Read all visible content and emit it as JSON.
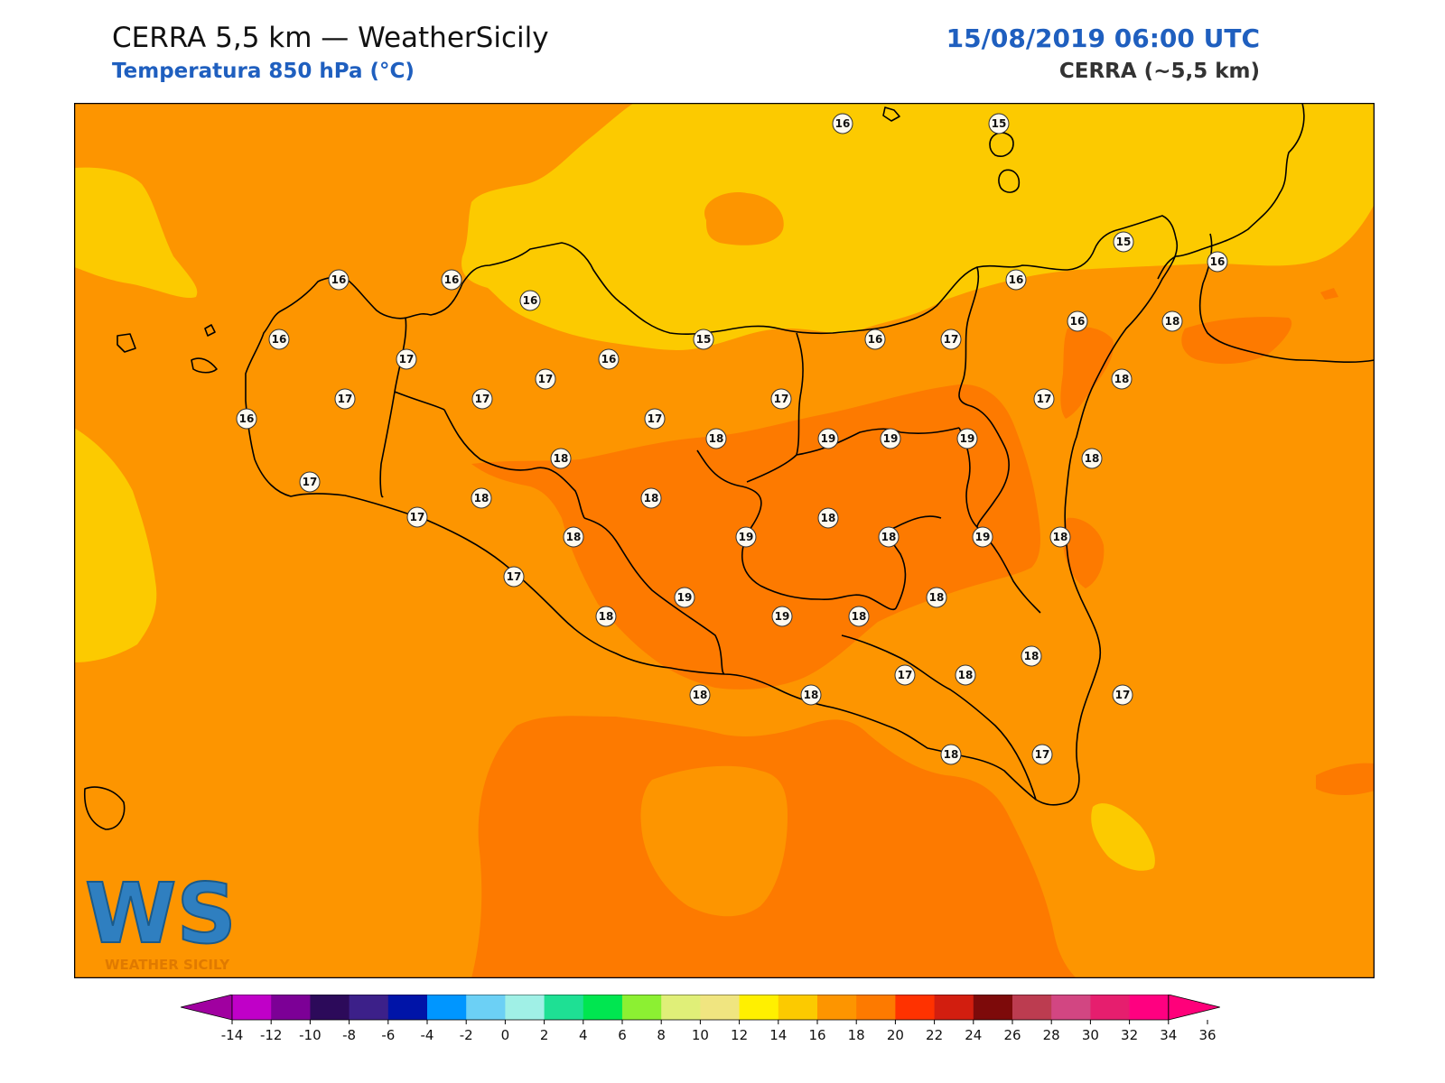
{
  "header": {
    "title": "CERRA 5,5 km — WeatherSicily",
    "subtitle": "Temperatura 850 hPa (°C)",
    "datetime": "15/08/2019 06:00 UTC",
    "model": "CERRA (~5,5 km)"
  },
  "logo": {
    "mark": "WS",
    "text": "WEATHER SICILY"
  },
  "colors": {
    "t14_16": "#fcca00",
    "t16_18": "#fd9500",
    "t18_20": "#fd7a00",
    "coast": "#000000"
  },
  "stations": [
    {
      "id": "s1",
      "label": "16"
    },
    {
      "id": "s2",
      "label": "15"
    },
    {
      "id": "s3",
      "label": "15"
    },
    {
      "id": "s4",
      "label": "16"
    },
    {
      "id": "s5",
      "label": "16"
    },
    {
      "id": "s6",
      "label": "16"
    },
    {
      "id": "s7",
      "label": "16"
    },
    {
      "id": "s8",
      "label": "16"
    },
    {
      "id": "s9",
      "label": "18"
    },
    {
      "id": "s10",
      "label": "16"
    },
    {
      "id": "s11",
      "label": "17"
    },
    {
      "id": "s12",
      "label": "16"
    },
    {
      "id": "s13",
      "label": "15"
    },
    {
      "id": "s14",
      "label": "16"
    },
    {
      "id": "s15",
      "label": "16"
    },
    {
      "id": "s16",
      "label": "17"
    },
    {
      "id": "s17",
      "label": "17"
    },
    {
      "id": "s18",
      "label": "17"
    },
    {
      "id": "s19",
      "label": "18"
    },
    {
      "id": "s20",
      "label": "16"
    },
    {
      "id": "s21",
      "label": "17"
    },
    {
      "id": "s22",
      "label": "17"
    },
    {
      "id": "s23",
      "label": "17"
    },
    {
      "id": "s24",
      "label": "18"
    },
    {
      "id": "s25",
      "label": "19"
    },
    {
      "id": "s26",
      "label": "19"
    },
    {
      "id": "s27",
      "label": "19"
    },
    {
      "id": "s28",
      "label": "18"
    },
    {
      "id": "s29",
      "label": "17"
    },
    {
      "id": "s30",
      "label": "18"
    },
    {
      "id": "s31",
      "label": "18"
    },
    {
      "id": "s32",
      "label": "18"
    },
    {
      "id": "s33",
      "label": "19"
    },
    {
      "id": "s34",
      "label": "18"
    },
    {
      "id": "s35",
      "label": "18"
    },
    {
      "id": "s36",
      "label": "19"
    },
    {
      "id": "s37",
      "label": "18"
    },
    {
      "id": "s38",
      "label": "17"
    },
    {
      "id": "s39",
      "label": "19"
    },
    {
      "id": "s40",
      "label": "18"
    },
    {
      "id": "s41",
      "label": "19"
    },
    {
      "id": "s42",
      "label": "18"
    },
    {
      "id": "s43",
      "label": "18"
    },
    {
      "id": "s44",
      "label": "18"
    },
    {
      "id": "s45",
      "label": "17"
    },
    {
      "id": "s46",
      "label": "18"
    },
    {
      "id": "s47",
      "label": "17"
    },
    {
      "id": "s48",
      "label": "18"
    },
    {
      "id": "s49",
      "label": "18"
    },
    {
      "id": "s50",
      "label": "18"
    },
    {
      "id": "s51",
      "label": "17"
    },
    {
      "id": "s52",
      "label": "18"
    },
    {
      "id": "s53",
      "label": "17"
    },
    {
      "id": "s54",
      "label": "17"
    }
  ],
  "colorbar": {
    "ticks": [
      "-14",
      "-12",
      "-10",
      "-8",
      "-6",
      "-4",
      "-2",
      "0",
      "2",
      "4",
      "6",
      "8",
      "10",
      "12",
      "14",
      "16",
      "18",
      "20",
      "22",
      "24",
      "26",
      "28",
      "30",
      "32",
      "34",
      "36"
    ],
    "segments": [
      "#c000c8",
      "#7c0096",
      "#2c0a5a",
      "#3c2089",
      "#0014a8",
      "#0096ff",
      "#6cd0f5",
      "#a0f0e6",
      "#1ee094",
      "#00e650",
      "#8cf032",
      "#e0ef78",
      "#f0e580",
      "#fff000",
      "#fcca00",
      "#fd9500",
      "#fd7a00",
      "#ff3200",
      "#d21e0f",
      "#7d0a0a",
      "#bc3c50",
      "#d24682",
      "#e61e6e",
      "#ff0080"
    ],
    "under_color": "#a000a0",
    "over_color": "#ff007a"
  }
}
